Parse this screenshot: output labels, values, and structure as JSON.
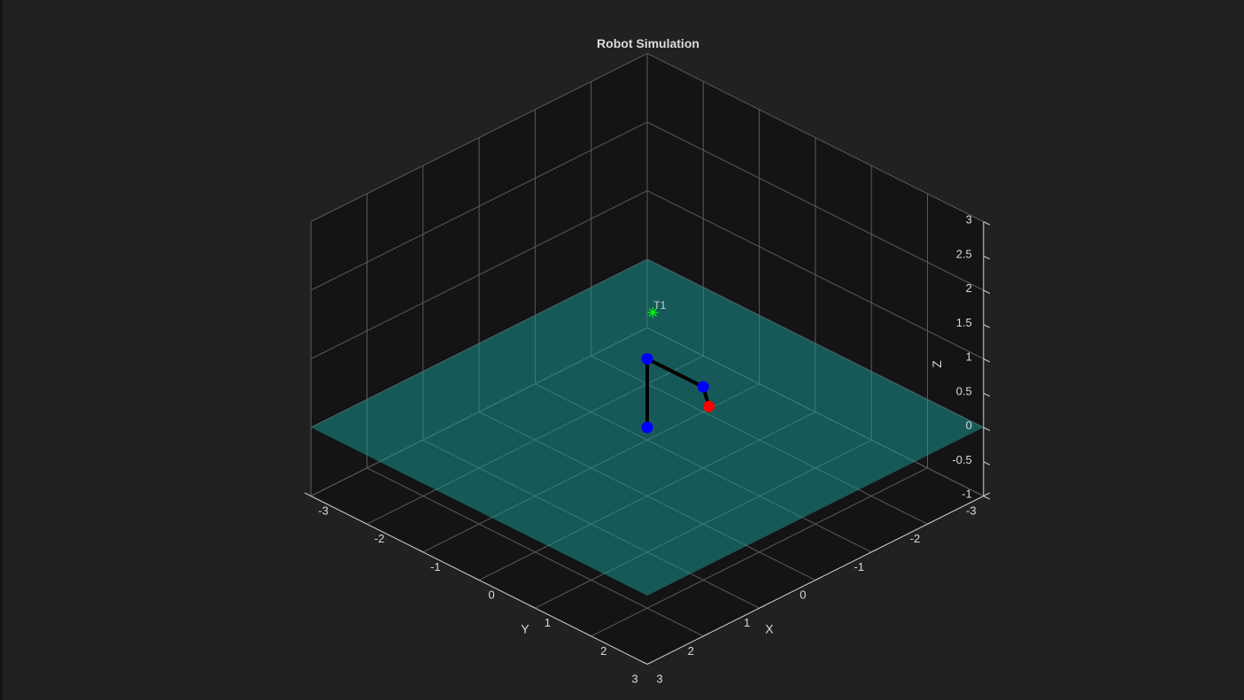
{
  "chart_data": {
    "type": "scatter",
    "title": "Robot Simulation",
    "xlabel": "X",
    "ylabel": "Y",
    "zlabel": "Z",
    "xlim": [
      -3,
      3
    ],
    "ylim": [
      -3,
      3
    ],
    "zlim": [
      -1,
      3
    ],
    "xticks": [
      -3,
      -2,
      -1,
      0,
      1,
      2,
      3
    ],
    "yticks": [
      -3,
      -2,
      -1,
      0,
      1,
      2,
      3
    ],
    "zticks": [
      -1,
      -0.5,
      0,
      0.5,
      1,
      1.5,
      2,
      2.5,
      3
    ],
    "xtick_labels": [
      "-3",
      "-2",
      "-1",
      "0",
      "1",
      "2",
      "3"
    ],
    "ytick_labels": [
      "-3",
      "-2",
      "-1",
      "0",
      "1",
      "2",
      "3"
    ],
    "ztick_labels": [
      "-1",
      "-0.5",
      "0",
      "0.5",
      "1",
      "1.5",
      "2",
      "2.5",
      "3"
    ],
    "grid": true,
    "view": "isometric",
    "ground_plane": {
      "z": 0,
      "color": "#1a9e9e",
      "opacity": 0.5
    },
    "target": {
      "label": "T1",
      "x": -2.1,
      "y": -2.0,
      "z": 0,
      "marker": "asterisk",
      "color": "#00ff00"
    },
    "robot": {
      "link_color": "#000000",
      "joints": [
        {
          "x": 0,
          "y": 0,
          "z": 0,
          "color": "#0000ff"
        },
        {
          "x": 0,
          "y": 0,
          "z": 1,
          "color": "#0000ff"
        },
        {
          "x": 0,
          "y": 1,
          "z": 1,
          "color": "#0000ff"
        },
        {
          "x": 0.3,
          "y": 1.4,
          "z": 1,
          "color": "#ff0000"
        }
      ]
    },
    "colors": {
      "background": "#212121",
      "axes_background": "#141414",
      "grid": "#5a5a5a",
      "axis_line": "#c8c8c8"
    }
  }
}
